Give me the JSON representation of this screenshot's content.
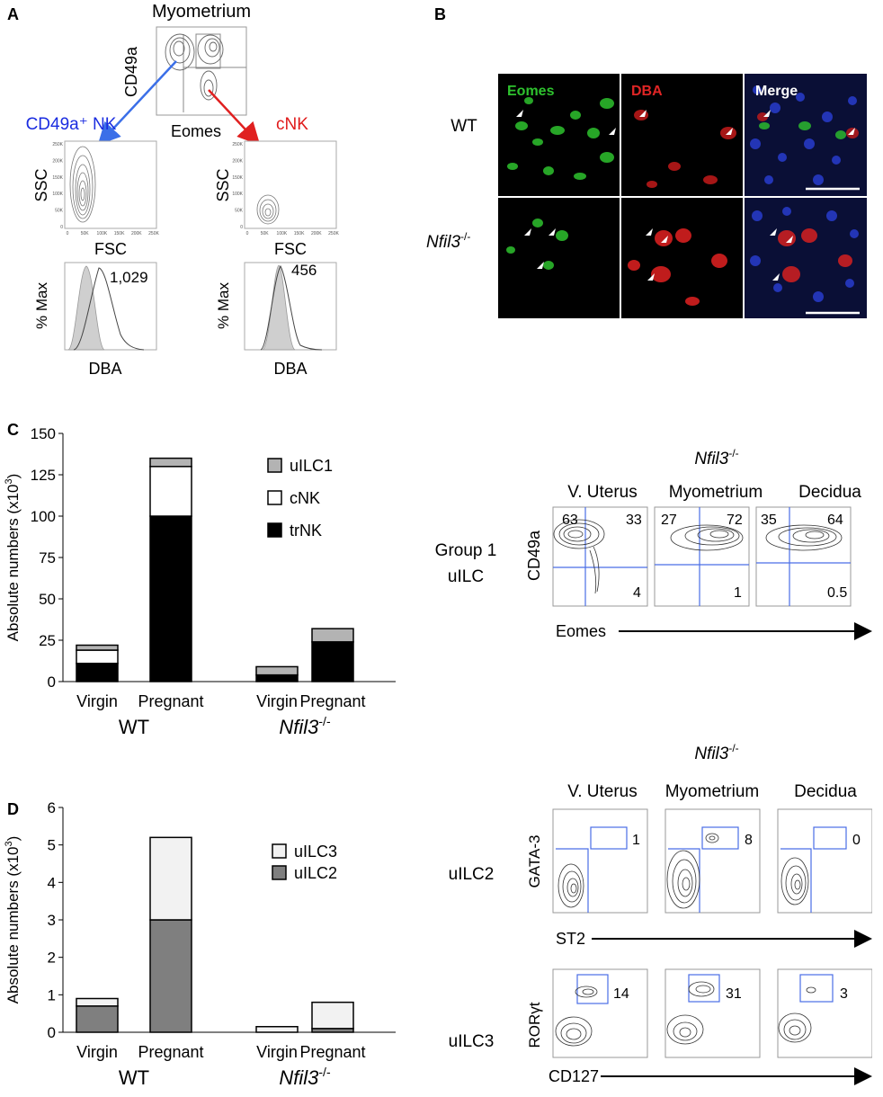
{
  "panel_letters": {
    "a": "A",
    "b": "B",
    "c": "C",
    "d": "D"
  },
  "panel_a": {
    "top_title": "Myometrium",
    "top_ylabel": "CD49a",
    "top_xlabel": "Eomes",
    "left_title": "CD49a⁺ NK",
    "right_title": "cNK",
    "ssc_label": "SSC",
    "fsc_label": "FSC",
    "hist_ylabel": "% Max",
    "hist_xlabel": "DBA",
    "left_mfi": "1,029",
    "right_mfi": "456",
    "ssc_ticks": [
      "250K",
      "200K",
      "150K",
      "100K",
      "50K",
      "0"
    ],
    "fsc_ticks": [
      "0",
      "50K",
      "100K",
      "150K",
      "200K",
      "250K"
    ],
    "colors": {
      "blue": "#1a2ce0",
      "red": "#e01b1b",
      "arrow_blue": "#3b6fe8",
      "arrow_red": "#e02020"
    }
  },
  "panel_b": {
    "row_labels": {
      "wt": "WT",
      "ko": "Nfil3"
    },
    "ko_sup": "-/-",
    "channel_labels": {
      "eomes": "Eomes",
      "dba": "DBA",
      "merge": "Merge"
    },
    "colors": {
      "eomes": "#2ec22e",
      "dba": "#e02525",
      "merge": "#ffffff"
    }
  },
  "panel_c_chart": {
    "chart_data": {
      "type": "bar",
      "stacked": true,
      "categories": [
        "Virgin",
        "Pregnant",
        "Virgin",
        "Pregnant"
      ],
      "groups": [
        {
          "name": "WT",
          "categories": [
            "Virgin",
            "Pregnant"
          ]
        },
        {
          "name": "Nfil3",
          "sup": "-/-",
          "categories": [
            "Virgin",
            "Pregnant"
          ]
        }
      ],
      "series": [
        {
          "name": "trNK",
          "values": [
            11,
            100,
            4,
            24
          ],
          "color": "#000000"
        },
        {
          "name": "cNK",
          "values": [
            8,
            30,
            0,
            0
          ],
          "color": "#ffffff"
        },
        {
          "name": "uILC1",
          "values": [
            3,
            5,
            5,
            8
          ],
          "color": "#b3b3b3"
        }
      ],
      "ylabel_main": "Absolute numbers (x10",
      "ylabel_sup": "3",
      "ylabel_end": ")",
      "ylim": [
        0,
        150
      ],
      "yticks": [
        "0",
        "25",
        "50",
        "75",
        "100",
        "125",
        "150"
      ],
      "legend_order": [
        "uILC1",
        "cNK",
        "trNK"
      ],
      "legend_position": "top-right"
    }
  },
  "panel_d_chart": {
    "chart_data": {
      "type": "bar",
      "stacked": true,
      "categories": [
        "Virgin",
        "Pregnant",
        "Virgin",
        "Pregnant"
      ],
      "groups": [
        {
          "name": "WT",
          "categories": [
            "Virgin",
            "Pregnant"
          ]
        },
        {
          "name": "Nfil3",
          "sup": "-/-",
          "categories": [
            "Virgin",
            "Pregnant"
          ]
        }
      ],
      "series": [
        {
          "name": "uILC2",
          "values": [
            0.7,
            3.0,
            0.0,
            0.1
          ],
          "color": "#7f7f7f"
        },
        {
          "name": "uILC3",
          "values": [
            0.2,
            2.2,
            0.15,
            0.7
          ],
          "color": "#f2f2f2"
        }
      ],
      "ylabel_main": "Absolute numbers (x10",
      "ylabel_sup": "3",
      "ylabel_end": ")",
      "ylim": [
        0,
        6
      ],
      "yticks": [
        "0",
        "1",
        "2",
        "3",
        "4",
        "5",
        "6"
      ],
      "legend_order": [
        "uILC3",
        "uILC2"
      ],
      "legend_position": "top-right"
    }
  },
  "panel_c_flow": {
    "header": "Nfil3",
    "header_sup": "-/-",
    "columns": [
      "V. Uterus",
      "Myometrium",
      "Decidua"
    ],
    "row_label_1": "Group 1",
    "row_label_2": "uILC",
    "ylabel": "CD49a",
    "xlabel": "Eomes",
    "quadrants": [
      {
        "tl": "63",
        "tr": "33",
        "br": "4"
      },
      {
        "tl": "27",
        "tr": "72",
        "br": "1"
      },
      {
        "tl": "35",
        "tr": "64",
        "br": "0.5"
      }
    ]
  },
  "panel_d_flow": {
    "header": "Nfil3",
    "header_sup": "-/-",
    "columns": [
      "V. Uterus",
      "Myometrium",
      "Decidua"
    ],
    "row1_label": "uILC2",
    "row1_ylabel": "GATA-3",
    "row1_xlabel": "ST2",
    "row1_values": [
      "1",
      "8",
      "0"
    ],
    "row2_label": "uILC3",
    "row2_ylabel": "RORγt",
    "row2_xlabel": "CD127",
    "row2_values": [
      "14",
      "31",
      "3"
    ]
  }
}
